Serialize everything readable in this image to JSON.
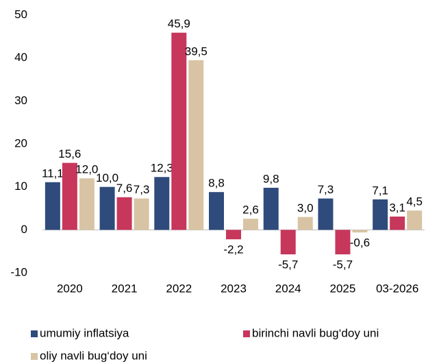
{
  "chart_data": {
    "type": "bar",
    "categories": [
      "2020",
      "2021",
      "2022",
      "2023",
      "2024",
      "2025",
      "03-2026"
    ],
    "series": [
      {
        "name": "umumiy inflatsiya",
        "color": "#2f4b7c",
        "values": [
          11.1,
          10.0,
          12.3,
          8.8,
          9.8,
          7.3,
          7.1
        ],
        "value_labels": [
          "11,1",
          "10,0",
          "12,3",
          "8,8",
          "9,8",
          "7,3",
          "7,1"
        ]
      },
      {
        "name": "birinchi navli bug‘doy uni",
        "color": "#c7375b",
        "values": [
          15.6,
          7.6,
          45.9,
          -2.2,
          -5.7,
          -5.7,
          3.1
        ],
        "value_labels": [
          "15,6",
          "7,6",
          "45,9",
          "-2,2",
          "-5,7",
          "-5,7",
          "3,1"
        ]
      },
      {
        "name": "oliy navli bug‘doy uni",
        "color": "#d8c4a4",
        "values": [
          12.0,
          7.3,
          39.5,
          2.6,
          3.0,
          -0.6,
          4.5
        ],
        "value_labels": [
          "12,0",
          "7,3",
          "39,5",
          "2,6",
          "3,0",
          "-0,6",
          "4,5"
        ]
      }
    ],
    "ylim": [
      -10,
      50
    ],
    "yticks": [
      -10,
      0,
      10,
      20,
      30,
      40,
      50
    ],
    "grid": false
  }
}
